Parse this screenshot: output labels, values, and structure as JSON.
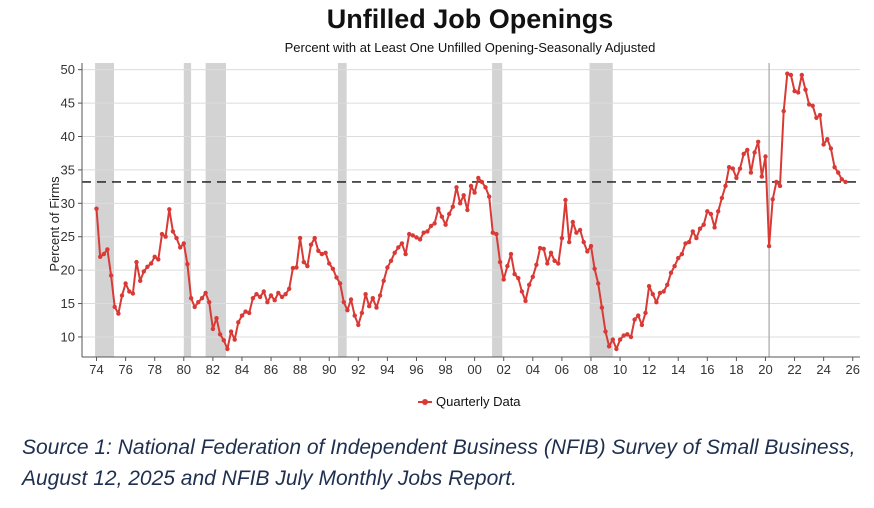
{
  "chart_data": {
    "type": "line",
    "title": "Unfilled Job Openings",
    "subtitle": "Percent with at Least One Unfilled Opening-Seasonally Adjusted",
    "ylabel": "Percent of Firms",
    "xlabel": "",
    "ylim": [
      7,
      51
    ],
    "xlim": [
      1973.0,
      2026.5
    ],
    "yticks": [
      10,
      15,
      20,
      25,
      30,
      35,
      40,
      45,
      50
    ],
    "xtick_labels": [
      "74",
      "76",
      "78",
      "80",
      "82",
      "84",
      "86",
      "88",
      "90",
      "92",
      "94",
      "96",
      "98",
      "00",
      "02",
      "04",
      "06",
      "08",
      "10",
      "12",
      "14",
      "16",
      "18",
      "20",
      "22",
      "24",
      "26"
    ],
    "xtick_values": [
      1974,
      1976,
      1978,
      1980,
      1982,
      1984,
      1986,
      1988,
      1990,
      1992,
      1994,
      1996,
      1998,
      2000,
      2002,
      2004,
      2006,
      2008,
      2010,
      2012,
      2014,
      2016,
      2018,
      2020,
      2022,
      2024,
      2026
    ],
    "grid": true,
    "legend_position": "bottom",
    "reference_line": {
      "y": 33.2,
      "style": "dashed"
    },
    "vertical_marker": {
      "x": 2020.25
    },
    "recessions": [
      [
        1973.9,
        1975.2
      ],
      [
        1980.0,
        1980.5
      ],
      [
        1981.5,
        1982.9
      ],
      [
        1990.6,
        1991.2
      ],
      [
        2001.2,
        2001.9
      ],
      [
        2007.9,
        2009.5
      ]
    ],
    "series": [
      {
        "name": "Quarterly Data",
        "color": "#d93a36",
        "points": [
          [
            1974.0,
            29.2
          ],
          [
            1974.25,
            22.0
          ],
          [
            1974.5,
            22.4
          ],
          [
            1974.75,
            23.1
          ],
          [
            1975.0,
            19.2
          ],
          [
            1975.25,
            14.5
          ],
          [
            1975.5,
            13.5
          ],
          [
            1975.75,
            16.2
          ],
          [
            1976.0,
            18.0
          ],
          [
            1976.25,
            16.8
          ],
          [
            1976.5,
            16.5
          ],
          [
            1976.75,
            21.2
          ],
          [
            1977.0,
            18.4
          ],
          [
            1977.25,
            19.8
          ],
          [
            1977.5,
            20.5
          ],
          [
            1977.75,
            21.0
          ],
          [
            1978.0,
            22.0
          ],
          [
            1978.25,
            21.6
          ],
          [
            1978.5,
            25.4
          ],
          [
            1978.75,
            25.0
          ],
          [
            1979.0,
            29.1
          ],
          [
            1979.25,
            25.8
          ],
          [
            1979.5,
            24.8
          ],
          [
            1979.75,
            23.4
          ],
          [
            1980.0,
            24.0
          ],
          [
            1980.25,
            20.9
          ],
          [
            1980.5,
            15.8
          ],
          [
            1980.75,
            14.5
          ],
          [
            1981.0,
            15.2
          ],
          [
            1981.25,
            15.8
          ],
          [
            1981.5,
            16.6
          ],
          [
            1981.75,
            15.2
          ],
          [
            1982.0,
            11.2
          ],
          [
            1982.25,
            12.8
          ],
          [
            1982.5,
            10.4
          ],
          [
            1982.75,
            9.5
          ],
          [
            1983.0,
            8.2
          ],
          [
            1983.25,
            10.8
          ],
          [
            1983.5,
            9.6
          ],
          [
            1983.75,
            12.2
          ],
          [
            1984.0,
            13.2
          ],
          [
            1984.25,
            13.8
          ],
          [
            1984.5,
            13.6
          ],
          [
            1984.75,
            15.8
          ],
          [
            1985.0,
            16.4
          ],
          [
            1985.25,
            16.0
          ],
          [
            1985.5,
            16.8
          ],
          [
            1985.75,
            15.2
          ],
          [
            1986.0,
            16.2
          ],
          [
            1986.25,
            15.5
          ],
          [
            1986.5,
            16.6
          ],
          [
            1986.75,
            16.0
          ],
          [
            1987.0,
            16.4
          ],
          [
            1987.25,
            17.2
          ],
          [
            1987.5,
            20.3
          ],
          [
            1987.75,
            20.4
          ],
          [
            1988.0,
            24.8
          ],
          [
            1988.25,
            21.2
          ],
          [
            1988.5,
            20.6
          ],
          [
            1988.75,
            23.8
          ],
          [
            1989.0,
            24.8
          ],
          [
            1989.25,
            22.9
          ],
          [
            1989.5,
            22.4
          ],
          [
            1989.75,
            22.6
          ],
          [
            1990.0,
            21.0
          ],
          [
            1990.25,
            20.2
          ],
          [
            1990.5,
            18.9
          ],
          [
            1990.75,
            18.0
          ],
          [
            1991.0,
            15.2
          ],
          [
            1991.25,
            14.0
          ],
          [
            1991.5,
            15.6
          ],
          [
            1991.75,
            13.2
          ],
          [
            1992.0,
            11.8
          ],
          [
            1992.25,
            13.6
          ],
          [
            1992.5,
            16.4
          ],
          [
            1992.75,
            14.6
          ],
          [
            1993.0,
            15.8
          ],
          [
            1993.25,
            14.4
          ],
          [
            1993.5,
            16.2
          ],
          [
            1993.75,
            18.4
          ],
          [
            1994.0,
            20.4
          ],
          [
            1994.25,
            21.4
          ],
          [
            1994.5,
            22.6
          ],
          [
            1994.75,
            23.4
          ],
          [
            1995.0,
            24.0
          ],
          [
            1995.25,
            22.4
          ],
          [
            1995.5,
            25.4
          ],
          [
            1995.75,
            25.2
          ],
          [
            1996.0,
            24.9
          ],
          [
            1996.25,
            24.6
          ],
          [
            1996.5,
            25.6
          ],
          [
            1996.75,
            25.8
          ],
          [
            1997.0,
            26.6
          ],
          [
            1997.25,
            27.0
          ],
          [
            1997.5,
            29.2
          ],
          [
            1997.75,
            28.0
          ],
          [
            1998.0,
            26.8
          ],
          [
            1998.25,
            28.4
          ],
          [
            1998.5,
            29.5
          ],
          [
            1998.75,
            32.4
          ],
          [
            1999.0,
            30.0
          ],
          [
            1999.25,
            31.2
          ],
          [
            1999.5,
            29.0
          ],
          [
            1999.75,
            32.6
          ],
          [
            2000.0,
            31.6
          ],
          [
            2000.25,
            33.8
          ],
          [
            2000.5,
            33.2
          ],
          [
            2000.75,
            32.4
          ],
          [
            2001.0,
            31.0
          ],
          [
            2001.25,
            25.6
          ],
          [
            2001.5,
            25.4
          ],
          [
            2001.75,
            21.2
          ],
          [
            2002.0,
            18.6
          ],
          [
            2002.25,
            20.6
          ],
          [
            2002.5,
            22.4
          ],
          [
            2002.75,
            19.4
          ],
          [
            2003.0,
            18.8
          ],
          [
            2003.25,
            16.8
          ],
          [
            2003.5,
            15.4
          ],
          [
            2003.75,
            17.8
          ],
          [
            2004.0,
            19.0
          ],
          [
            2004.25,
            20.8
          ],
          [
            2004.5,
            23.3
          ],
          [
            2004.75,
            23.2
          ],
          [
            2005.0,
            21.0
          ],
          [
            2005.25,
            22.6
          ],
          [
            2005.5,
            21.4
          ],
          [
            2005.75,
            21.0
          ],
          [
            2006.0,
            24.8
          ],
          [
            2006.25,
            30.5
          ],
          [
            2006.5,
            24.2
          ],
          [
            2006.75,
            27.2
          ],
          [
            2007.0,
            25.6
          ],
          [
            2007.25,
            26.0
          ],
          [
            2007.5,
            24.2
          ],
          [
            2007.75,
            22.8
          ],
          [
            2008.0,
            23.6
          ],
          [
            2008.25,
            20.2
          ],
          [
            2008.5,
            18.0
          ],
          [
            2008.75,
            14.4
          ],
          [
            2009.0,
            10.8
          ],
          [
            2009.25,
            8.6
          ],
          [
            2009.5,
            9.6
          ],
          [
            2009.75,
            8.2
          ],
          [
            2010.0,
            9.6
          ],
          [
            2010.25,
            10.2
          ],
          [
            2010.5,
            10.4
          ],
          [
            2010.75,
            10.0
          ],
          [
            2011.0,
            12.6
          ],
          [
            2011.25,
            13.2
          ],
          [
            2011.5,
            11.8
          ],
          [
            2011.75,
            13.6
          ],
          [
            2012.0,
            17.6
          ],
          [
            2012.25,
            16.4
          ],
          [
            2012.5,
            15.2
          ],
          [
            2012.75,
            16.6
          ],
          [
            2013.0,
            16.8
          ],
          [
            2013.25,
            17.8
          ],
          [
            2013.5,
            19.6
          ],
          [
            2013.75,
            20.6
          ],
          [
            2014.0,
            21.8
          ],
          [
            2014.25,
            22.4
          ],
          [
            2014.5,
            24.0
          ],
          [
            2014.75,
            24.2
          ],
          [
            2015.0,
            25.8
          ],
          [
            2015.25,
            24.8
          ],
          [
            2015.5,
            26.2
          ],
          [
            2015.75,
            26.8
          ],
          [
            2016.0,
            28.8
          ],
          [
            2016.25,
            28.4
          ],
          [
            2016.5,
            26.4
          ],
          [
            2016.75,
            28.8
          ],
          [
            2017.0,
            30.8
          ],
          [
            2017.25,
            32.6
          ],
          [
            2017.5,
            35.4
          ],
          [
            2017.75,
            35.2
          ],
          [
            2018.0,
            33.8
          ],
          [
            2018.25,
            35.2
          ],
          [
            2018.5,
            37.4
          ],
          [
            2018.75,
            38.0
          ],
          [
            2019.0,
            34.6
          ],
          [
            2019.25,
            37.6
          ],
          [
            2019.5,
            39.2
          ],
          [
            2019.75,
            34.0
          ],
          [
            2020.0,
            37.0
          ],
          [
            2020.25,
            23.6
          ],
          [
            2020.5,
            30.6
          ],
          [
            2020.75,
            33.2
          ],
          [
            2021.0,
            32.6
          ],
          [
            2021.25,
            43.8
          ],
          [
            2021.5,
            49.4
          ],
          [
            2021.75,
            49.2
          ],
          [
            2022.0,
            46.8
          ],
          [
            2022.25,
            46.6
          ],
          [
            2022.5,
            49.2
          ],
          [
            2022.75,
            47.0
          ],
          [
            2023.0,
            44.8
          ],
          [
            2023.25,
            44.6
          ],
          [
            2023.5,
            42.8
          ],
          [
            2023.75,
            43.2
          ],
          [
            2024.0,
            38.8
          ],
          [
            2024.25,
            39.6
          ],
          [
            2024.5,
            38.2
          ],
          [
            2024.75,
            35.4
          ],
          [
            2025.0,
            34.6
          ],
          [
            2025.25,
            33.6
          ],
          [
            2025.5,
            33.2
          ]
        ]
      }
    ]
  },
  "source_text": "Source 1: National Federation of Independent Business (NFIB) Survey of Small Business, August 12, 2025 and  NFIB July Monthly Jobs Report."
}
